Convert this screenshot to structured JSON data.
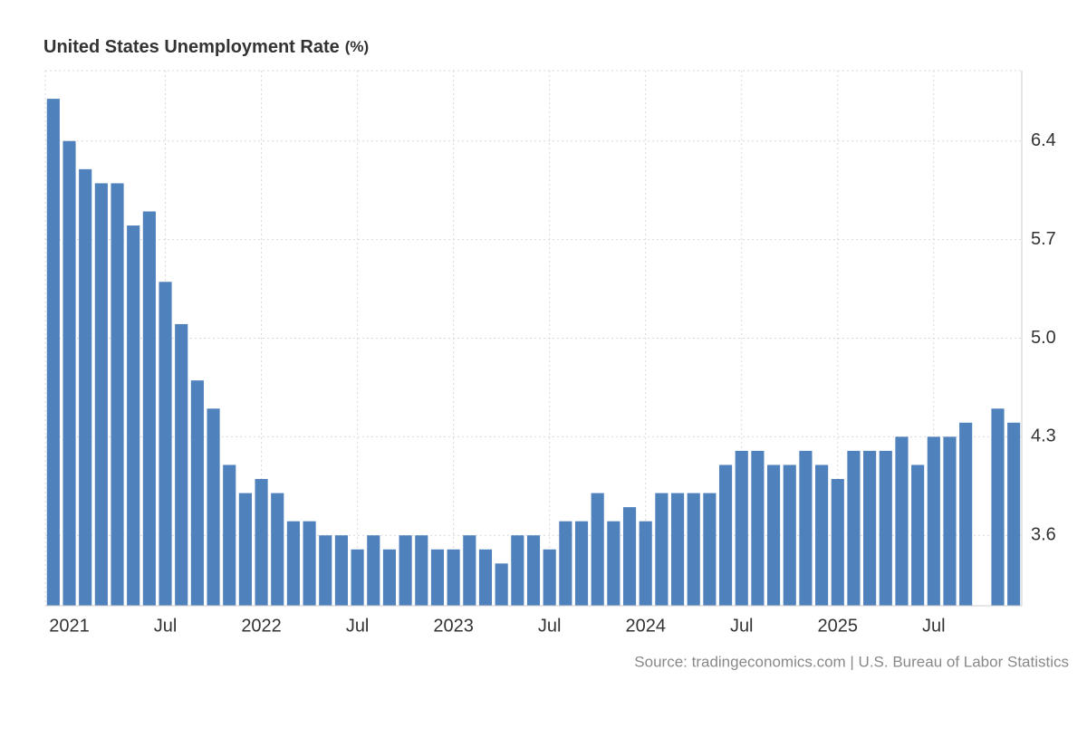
{
  "chart_data": {
    "type": "bar",
    "title": "United States Unemployment Rate",
    "unit": "(%)",
    "source": "Source: tradingeconomics.com | U.S. Bureau of Labor Statistics",
    "categories": [
      null,
      "2021",
      null,
      null,
      null,
      null,
      null,
      "Jul",
      null,
      null,
      null,
      null,
      null,
      "2022",
      null,
      null,
      null,
      null,
      null,
      "Jul",
      null,
      null,
      null,
      null,
      null,
      "2023",
      null,
      null,
      null,
      null,
      null,
      "Jul",
      null,
      null,
      null,
      null,
      null,
      "2024",
      null,
      null,
      null,
      null,
      null,
      "Jul",
      null,
      null,
      null,
      null,
      null,
      "2025",
      null,
      null,
      null,
      null,
      null,
      "Jul",
      null,
      null,
      null,
      null,
      null
    ],
    "values": [
      6.7,
      6.4,
      6.2,
      6.1,
      6.1,
      5.8,
      5.9,
      5.4,
      5.1,
      4.7,
      4.5,
      4.1,
      3.9,
      4.0,
      3.9,
      3.7,
      3.7,
      3.6,
      3.6,
      3.5,
      3.6,
      3.5,
      3.6,
      3.6,
      3.5,
      3.5,
      3.6,
      3.5,
      3.4,
      3.6,
      3.6,
      3.5,
      3.7,
      3.7,
      3.9,
      3.7,
      3.8,
      3.7,
      3.9,
      3.9,
      3.9,
      3.9,
      4.1,
      4.2,
      4.2,
      4.1,
      4.1,
      4.2,
      4.1,
      4.0,
      4.2,
      4.2,
      4.2,
      4.3,
      4.1,
      4.3,
      4.3,
      4.4,
      null,
      4.5,
      4.4
    ],
    "color": "#4f81bd",
    "ylim": [
      3.1,
      6.9
    ],
    "yticks": [
      3.6,
      4.3,
      {
        "value": 5,
        "label": "5.0"
      },
      5.7,
      6.4
    ],
    "grid": true
  }
}
